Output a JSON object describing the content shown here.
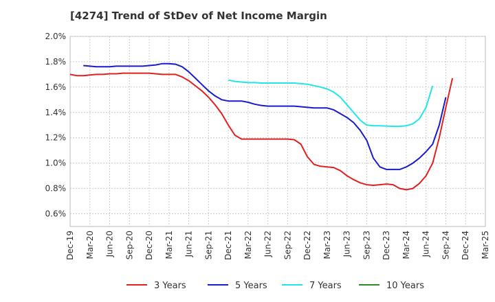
{
  "chart_data": {
    "type": "line",
    "title": "[4274]  Trend of StDev of Net Income Margin",
    "xlabel": "",
    "ylabel": "",
    "ylim": [
      0.5,
      2.0
    ],
    "yticks": [
      "0.6%",
      "0.8%",
      "1.0%",
      "1.2%",
      "1.4%",
      "1.6%",
      "1.8%",
      "2.0%"
    ],
    "ytick_values": [
      0.6,
      0.8,
      1.0,
      1.2,
      1.4,
      1.6,
      1.8,
      2.0
    ],
    "xticks": [
      "Dec-19",
      "Mar-20",
      "Jun-20",
      "Sep-20",
      "Dec-20",
      "Mar-21",
      "Jun-21",
      "Sep-21",
      "Dec-21",
      "Mar-22",
      "Jun-22",
      "Sep-22",
      "Dec-22",
      "Mar-23",
      "Jun-23",
      "Sep-23",
      "Dec-23",
      "Mar-24",
      "Jun-24",
      "Sep-24",
      "Dec-24",
      "Mar-25"
    ],
    "grid": true,
    "legend_position": "bottom",
    "series": [
      {
        "name": "3 Years",
        "color": "#e02020",
        "start_index": 0,
        "values": [
          1.7,
          1.69,
          1.69,
          1.695,
          1.7,
          1.7,
          1.705,
          1.705,
          1.71,
          1.71,
          1.71,
          1.71,
          1.71,
          1.705,
          1.7,
          1.7,
          1.7,
          1.68,
          1.65,
          1.61,
          1.57,
          1.52,
          1.46,
          1.39,
          1.3,
          1.22,
          1.19,
          1.19,
          1.19,
          1.19,
          1.19,
          1.19,
          1.19,
          1.19,
          1.185,
          1.15,
          1.05,
          0.99,
          0.975,
          0.97,
          0.965,
          0.94,
          0.9,
          0.87,
          0.845,
          0.83,
          0.825,
          0.83,
          0.835,
          0.83,
          0.8,
          0.79,
          0.8,
          0.84,
          0.9,
          1.0,
          1.2,
          1.44,
          1.67
        ]
      },
      {
        "name": "5 Years",
        "color": "#1a1acc",
        "start_index": 2,
        "values": [
          1.77,
          1.765,
          1.76,
          1.76,
          1.76,
          1.765,
          1.765,
          1.765,
          1.765,
          1.765,
          1.77,
          1.775,
          1.785,
          1.785,
          1.78,
          1.76,
          1.72,
          1.67,
          1.62,
          1.57,
          1.53,
          1.5,
          1.49,
          1.49,
          1.49,
          1.48,
          1.465,
          1.455,
          1.45,
          1.45,
          1.45,
          1.45,
          1.45,
          1.445,
          1.44,
          1.435,
          1.435,
          1.435,
          1.42,
          1.39,
          1.36,
          1.32,
          1.26,
          1.18,
          1.04,
          0.97,
          0.95,
          0.95,
          0.95,
          0.97,
          1.0,
          1.04,
          1.09,
          1.15,
          1.3,
          1.52
        ]
      },
      {
        "name": "7 Years",
        "color": "#22e5e5",
        "start_index": 24,
        "values": [
          1.655,
          1.645,
          1.64,
          1.635,
          1.635,
          1.632,
          1.632,
          1.632,
          1.632,
          1.632,
          1.632,
          1.627,
          1.622,
          1.612,
          1.6,
          1.585,
          1.56,
          1.52,
          1.46,
          1.4,
          1.34,
          1.3,
          1.295,
          1.295,
          1.293,
          1.29,
          1.29,
          1.295,
          1.31,
          1.35,
          1.44,
          1.61
        ]
      },
      {
        "name": "10 Years",
        "color": "#2a8a2a",
        "start_index": 0,
        "values": []
      }
    ]
  }
}
